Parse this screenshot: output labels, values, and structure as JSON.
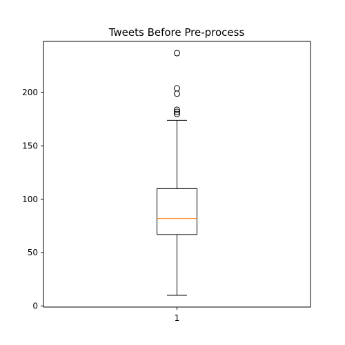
{
  "chart_data": {
    "type": "box",
    "title": "Tweets Before Pre-process",
    "xlabel": "",
    "ylabel": "",
    "categories": [
      "1"
    ],
    "ylim": [
      -1,
      248
    ],
    "yticks": [
      0,
      50,
      100,
      150,
      200
    ],
    "grid": false,
    "colors": {
      "box": "#000000",
      "median": "#ff7f0e",
      "outlier": "#000000"
    },
    "boxes": [
      {
        "category": "1",
        "whisker_low": 10,
        "q1": 67,
        "median": 82,
        "q3": 110,
        "whisker_high": 174,
        "outliers": [
          180,
          182,
          184,
          199,
          204,
          237
        ]
      }
    ]
  }
}
